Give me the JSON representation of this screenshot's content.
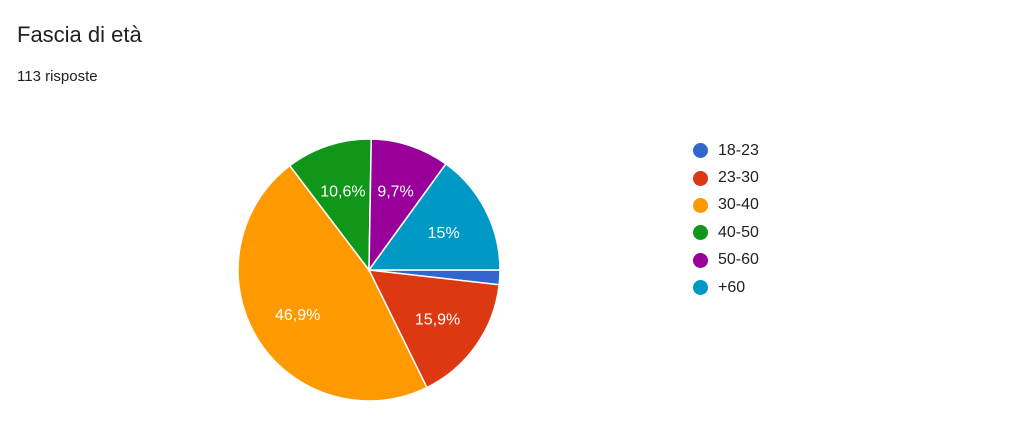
{
  "header": {
    "title": "Fascia di età",
    "responses": "113 risposte"
  },
  "chart_data": {
    "type": "pie",
    "categories": [
      "18-23",
      "23-30",
      "30-40",
      "40-50",
      "50-60",
      "+60"
    ],
    "values": [
      1.8,
      15.9,
      46.9,
      10.6,
      9.7,
      15.0
    ],
    "value_labels": [
      "",
      "15,9%",
      "46,9%",
      "10,6%",
      "9,7%",
      "15%"
    ],
    "colors": [
      "#3366cc",
      "#dc3912",
      "#ff9900",
      "#109618",
      "#990099",
      "#0099c6"
    ],
    "start": "3 o'clock",
    "direction": "clockwise",
    "legend_position": "right"
  }
}
